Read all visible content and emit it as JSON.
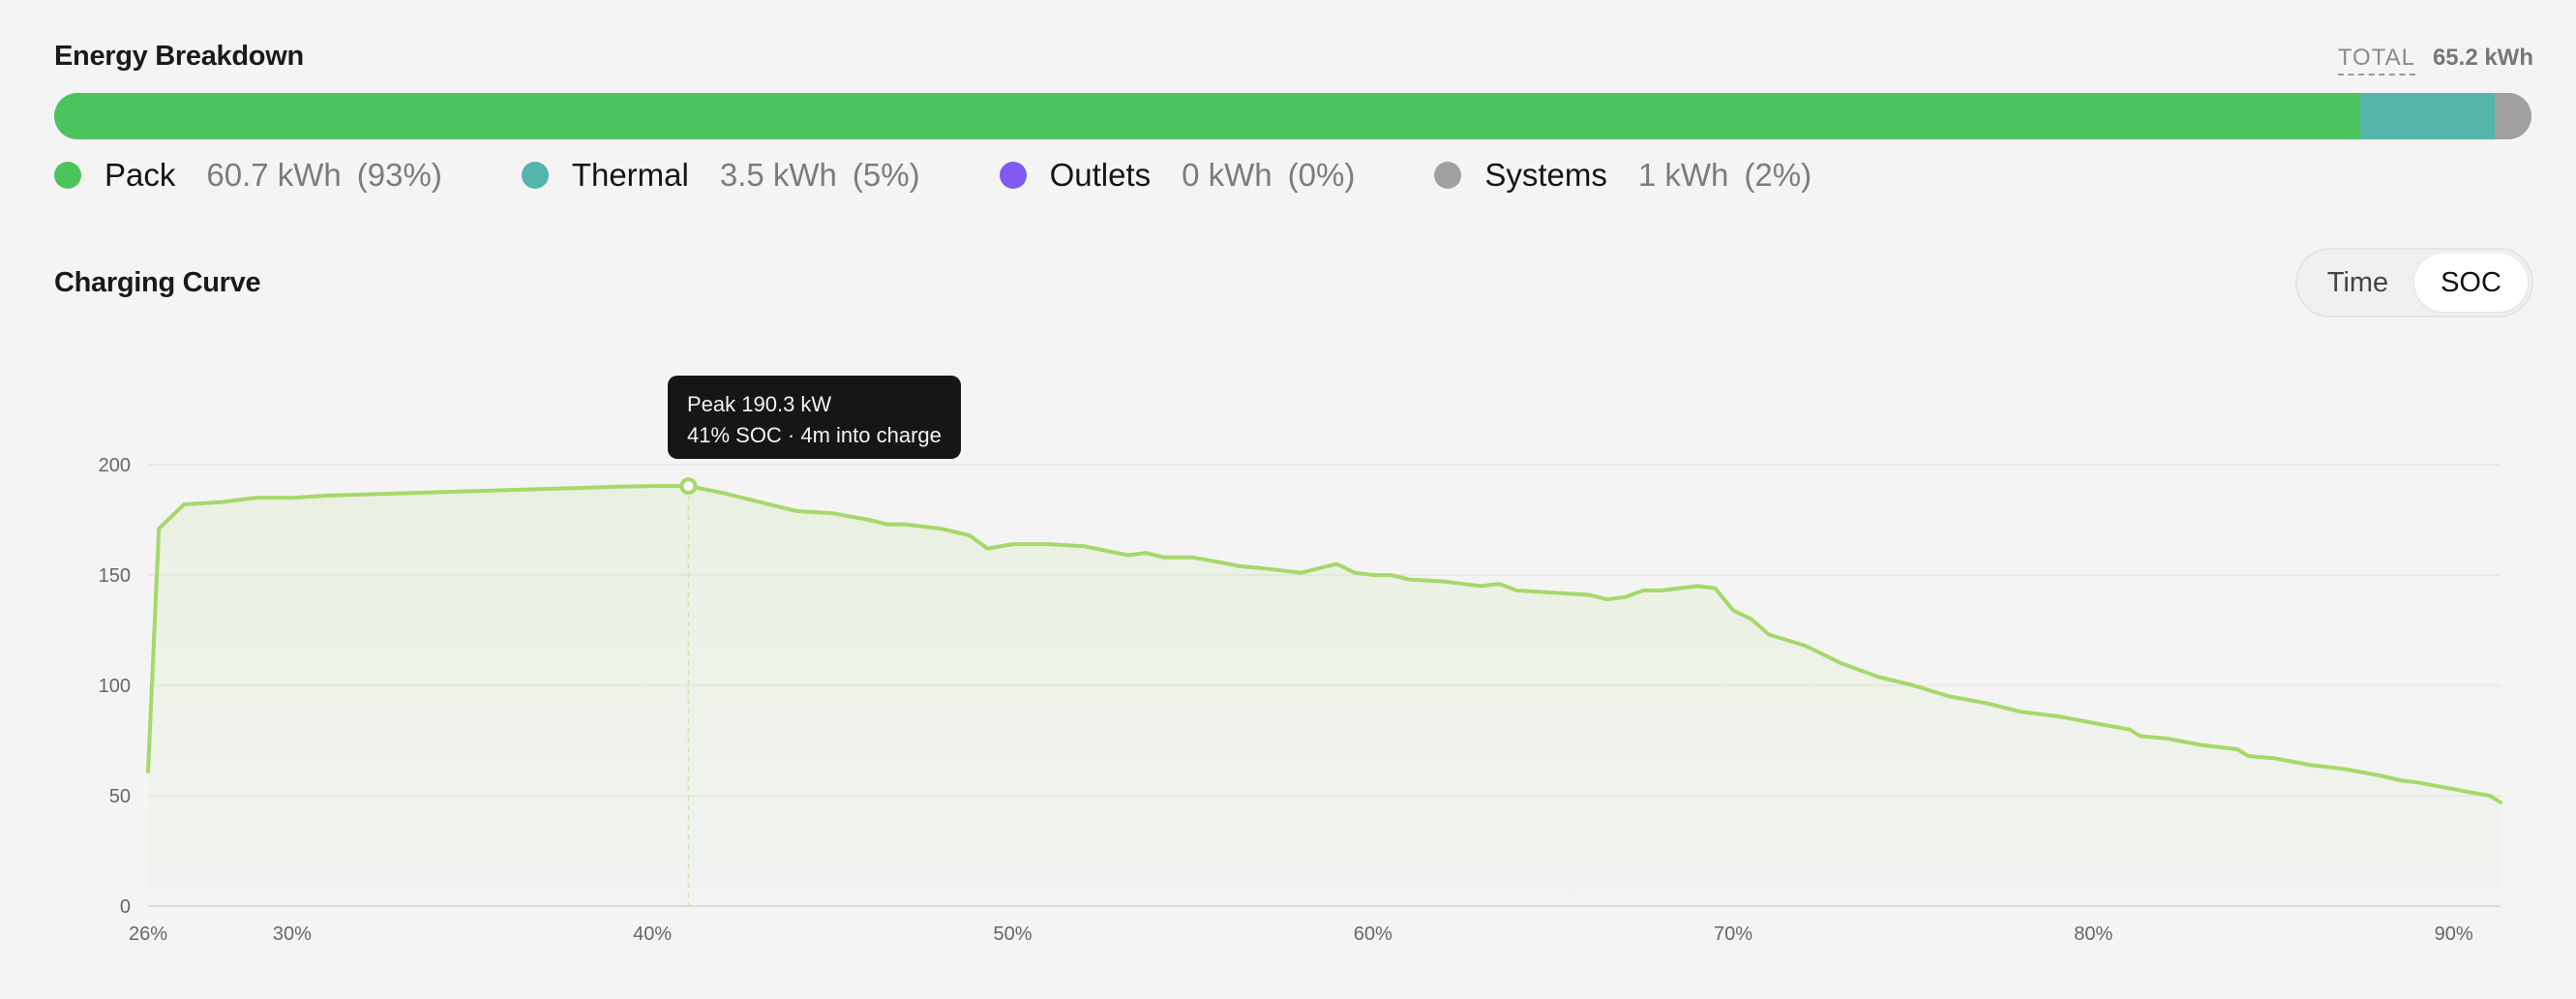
{
  "energy": {
    "title": "Energy Breakdown",
    "total_label": "TOTAL",
    "total_value": "65.2 kWh",
    "segments": [
      {
        "name": "Pack",
        "amount": "60.7 kWh",
        "pct": "(93%)",
        "color": "#4cc45e",
        "fraction": 0.931
      },
      {
        "name": "Thermal",
        "amount": "3.5 kWh",
        "pct": "(5%)",
        "color": "#54b5aa",
        "fraction": 0.054
      },
      {
        "name": "Outlets",
        "amount": "0 kWh",
        "pct": "(0%)",
        "color": "#7e5af0",
        "fraction": 0.0
      },
      {
        "name": "Systems",
        "amount": "1 kWh",
        "pct": "(2%)",
        "color": "#a0a0a0",
        "fraction": 0.015
      }
    ]
  },
  "curve": {
    "title": "Charging Curve",
    "toggle": {
      "time": "Time",
      "soc": "SOC",
      "selected": "SOC"
    },
    "tooltip": {
      "line1": "Peak 190.3 kW",
      "line2": "41% SOC · 4m into charge"
    }
  },
  "chart_data": {
    "type": "line",
    "title": "",
    "xlabel": "",
    "ylabel": "",
    "xlim": [
      26,
      91.3
    ],
    "ylim": [
      0,
      200
    ],
    "x_ticks": [
      {
        "value": 26,
        "label": "26%"
      },
      {
        "value": 30,
        "label": "30%"
      },
      {
        "value": 40,
        "label": "40%"
      },
      {
        "value": 50,
        "label": "50%"
      },
      {
        "value": 60,
        "label": "60%"
      },
      {
        "value": 70,
        "label": "70%"
      },
      {
        "value": 80,
        "label": "80%"
      },
      {
        "value": 90,
        "label": "90%"
      }
    ],
    "y_ticks": [
      {
        "value": 0,
        "label": "0"
      },
      {
        "value": 50,
        "label": "50"
      },
      {
        "value": 100,
        "label": "100"
      },
      {
        "value": 150,
        "label": "150"
      },
      {
        "value": 200,
        "label": "200"
      }
    ],
    "grid": true,
    "line_color": "#a6d86a",
    "peak": {
      "x": 41,
      "y": 190.3
    },
    "series": [
      {
        "x": [
          26.0,
          26.3,
          27.0,
          28.0,
          28.5,
          29.0,
          30.0,
          31.0,
          33.0,
          35.0,
          37.0,
          39.0,
          40.0,
          41.0,
          42.0,
          43.0,
          44.0,
          45.0,
          46.0,
          46.5,
          47.0,
          48.0,
          48.8,
          49.3,
          50.0,
          51.0,
          52.0,
          53.2,
          53.7,
          54.2,
          55.0,
          56.0,
          56.3,
          57.0,
          58.0,
          59.0,
          59.5,
          60.0,
          60.5,
          61.0,
          62.0,
          63.0,
          63.5,
          64.0,
          65.0,
          66.0,
          66.5,
          67.0,
          67.5,
          68.0,
          69.0,
          69.5,
          70.0,
          70.5,
          71.0,
          72.0,
          73.0,
          74.0,
          75.0,
          76.0,
          77.0,
          78.0,
          79.0,
          80.0,
          81.0,
          81.3,
          82.0,
          83.0,
          84.0,
          84.3,
          85.0,
          86.0,
          87.0,
          88.0,
          88.5,
          89.0,
          90.0,
          90.3,
          91.0,
          91.3
        ],
        "y": [
          61,
          171,
          182,
          183,
          184,
          185,
          185,
          186,
          187,
          188,
          189,
          190,
          190.3,
          190.3,
          187,
          183,
          179,
          178,
          175,
          173,
          173,
          171,
          168,
          162,
          164,
          164,
          163,
          159,
          160,
          158,
          158,
          155,
          154,
          153,
          151,
          155,
          151,
          150,
          150,
          148,
          147,
          145,
          146,
          143,
          142,
          141,
          139,
          140,
          143,
          143,
          145,
          144,
          134,
          130,
          123,
          118,
          110,
          104,
          100,
          95,
          92,
          88,
          86,
          83,
          80,
          77,
          76,
          73,
          71,
          68,
          67,
          64,
          62,
          59,
          57,
          56,
          53,
          52,
          50,
          47
        ]
      }
    ]
  }
}
